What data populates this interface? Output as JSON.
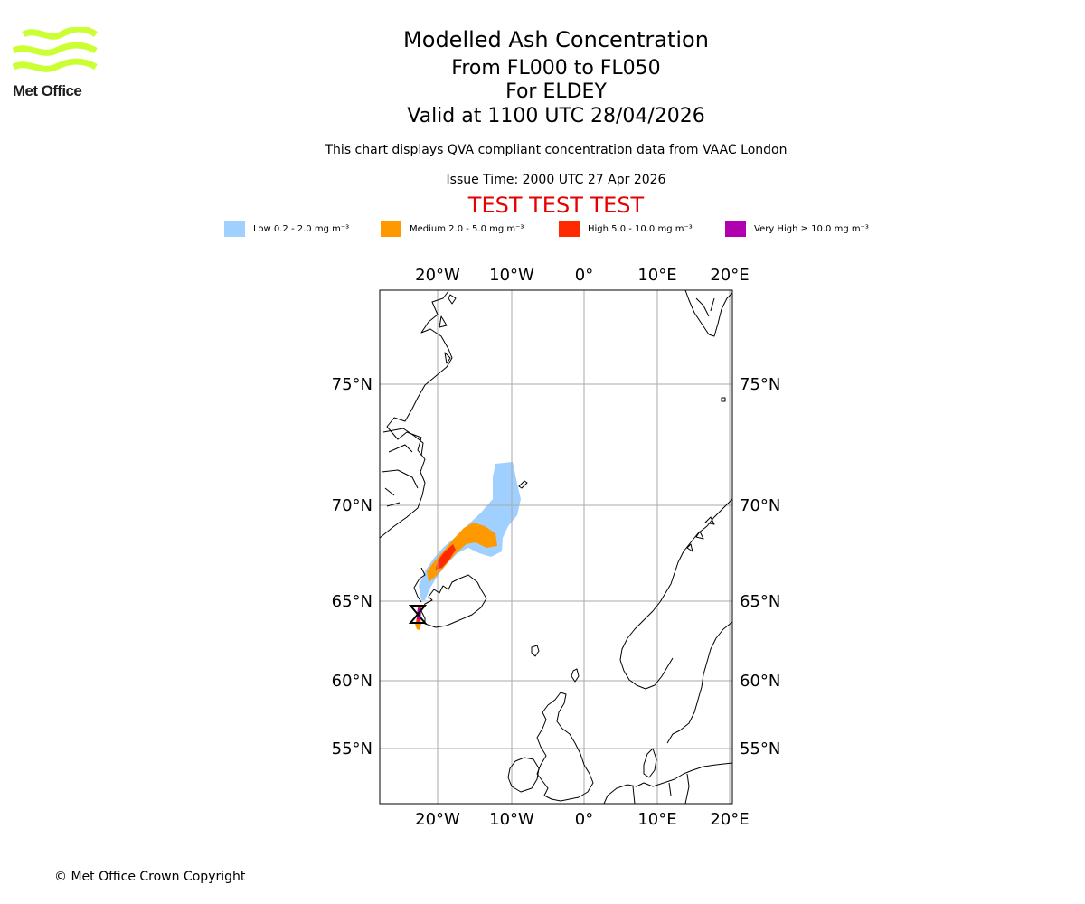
{
  "logo": {
    "text": "Met Office",
    "color": "#ccff33"
  },
  "header": {
    "title": "Modelled Ash Concentration",
    "subtitle_levels": "From FL000 to FL050",
    "subtitle_volcano": "For ELDEY",
    "subtitle_valid": "Valid at 1100 UTC 28/04/2026",
    "description": "This chart displays QVA compliant concentration data from VAAC London",
    "issue_time": "Issue Time: 2000 UTC 27 Apr 2026",
    "test_banner": "TEST TEST TEST",
    "test_color": "#e60000"
  },
  "legend": [
    {
      "label": "Low 0.2 - 2.0 mg m⁻³",
      "color": "#a0d0ff"
    },
    {
      "label": "Medium 2.0 - 5.0 mg m⁻³",
      "color": "#ff9900"
    },
    {
      "label": "High 5.0 - 10.0 mg m⁻³",
      "color": "#ff2a00"
    },
    {
      "label": "Very High ≥ 10.0 mg m⁻³",
      "color": "#b000b0"
    }
  ],
  "map": {
    "lon_labels": [
      "20°W",
      "10°W",
      "0°",
      "10°E",
      "20°E"
    ],
    "lat_labels": [
      "75°N",
      "70°N",
      "65°N",
      "60°N",
      "55°N"
    ],
    "grid_color": "#aaaaaa",
    "volcano_marker": "hourglass-symbol"
  },
  "footer": {
    "copyright": "© Met Office Crown Copyright"
  }
}
